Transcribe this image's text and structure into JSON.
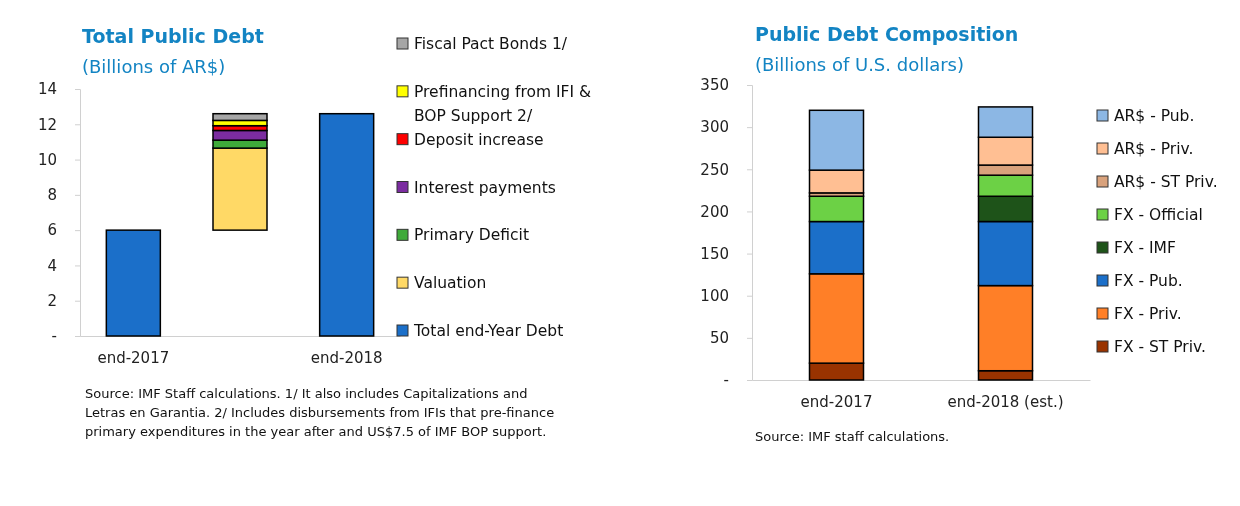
{
  "chart_data": [
    {
      "type": "bar",
      "title": "Total Public Debt",
      "subtitle": "(Billions  of AR$)",
      "categories": [
        "end-2017",
        null,
        "end-2018"
      ],
      "legend": "right",
      "ylim": [
        0,
        14
      ],
      "yticks": [
        {
          "value": 0,
          "label": "-"
        },
        2,
        4,
        6,
        8,
        10,
        12,
        14
      ],
      "grid": false,
      "series": [
        {
          "name": "Total end-Year Debt",
          "color": "#1b6fc9",
          "values": [
            6,
            null,
            12.6
          ]
        },
        {
          "name": "Valuation",
          "color": "#ffd966",
          "base": [
            null,
            6,
            null
          ],
          "values": [
            null,
            4.65,
            null
          ]
        },
        {
          "name": "Primary Deficit",
          "color": "#3faa3a",
          "base": [
            null,
            10.65,
            null
          ],
          "values": [
            null,
            0.45,
            null
          ]
        },
        {
          "name": "Interest payments",
          "color": "#7b2ca0",
          "base": [
            null,
            11.1,
            null
          ],
          "values": [
            null,
            0.55,
            null
          ]
        },
        {
          "name": "Deposit increase",
          "color": "#ff0000",
          "base": [
            null,
            11.65,
            null
          ],
          "values": [
            null,
            0.27,
            null
          ]
        },
        {
          "name": "Prefinancing from IFI & BOP Support 2/",
          "color": "#ffff00",
          "base": [
            null,
            11.92,
            null
          ],
          "values": [
            null,
            0.3,
            null
          ]
        },
        {
          "name": "Fiscal Pact Bonds 1/",
          "color": "#a6a6a6",
          "base": [
            null,
            12.22,
            null
          ],
          "values": [
            null,
            0.38,
            null
          ]
        }
      ],
      "annotations": [
        "Source: IMF Staff calculations. 1/ It also includes Capitalizations and Letras en Garantia. 2/ Includes disbursements from IFIs that pre-finance primary expenditures in the year after and US$7.5 of IMF BOP support."
      ]
    },
    {
      "type": "bar",
      "title": "Public Debt Composition",
      "subtitle": "(Billions  of U.S. dollars)",
      "categories": [
        "end-2017",
        "end-2018 (est.)"
      ],
      "stacked": true,
      "legend": "right",
      "ylim": [
        0,
        350
      ],
      "yticks": [
        {
          "value": 0,
          "label": "-"
        },
        50,
        100,
        150,
        200,
        250,
        300,
        350
      ],
      "grid": false,
      "series": [
        {
          "name": "FX - ST Priv.",
          "color": "#993300",
          "values": [
            20,
            11
          ]
        },
        {
          "name": "FX - Priv.",
          "color": "#ff7f27",
          "values": [
            106,
            101
          ]
        },
        {
          "name": "FX - Pub.",
          "color": "#1b6fc9",
          "values": [
            62,
            76
          ]
        },
        {
          "name": "FX - IMF",
          "color": "#1e5319",
          "values": [
            0,
            30
          ]
        },
        {
          "name": "FX - Official",
          "color": "#6cd145",
          "values": [
            30,
            25
          ]
        },
        {
          "name": "AR$ - ST Priv.",
          "color": "#d9a27c",
          "values": [
            4,
            12
          ]
        },
        {
          "name": "AR$ - Priv.",
          "color": "#ffbf93",
          "values": [
            27,
            33
          ]
        },
        {
          "name": "AR$ - Pub.",
          "color": "#8cb7e4",
          "values": [
            71,
            36
          ]
        }
      ],
      "annotations": [
        "Source: IMF staff calculations."
      ]
    }
  ]
}
